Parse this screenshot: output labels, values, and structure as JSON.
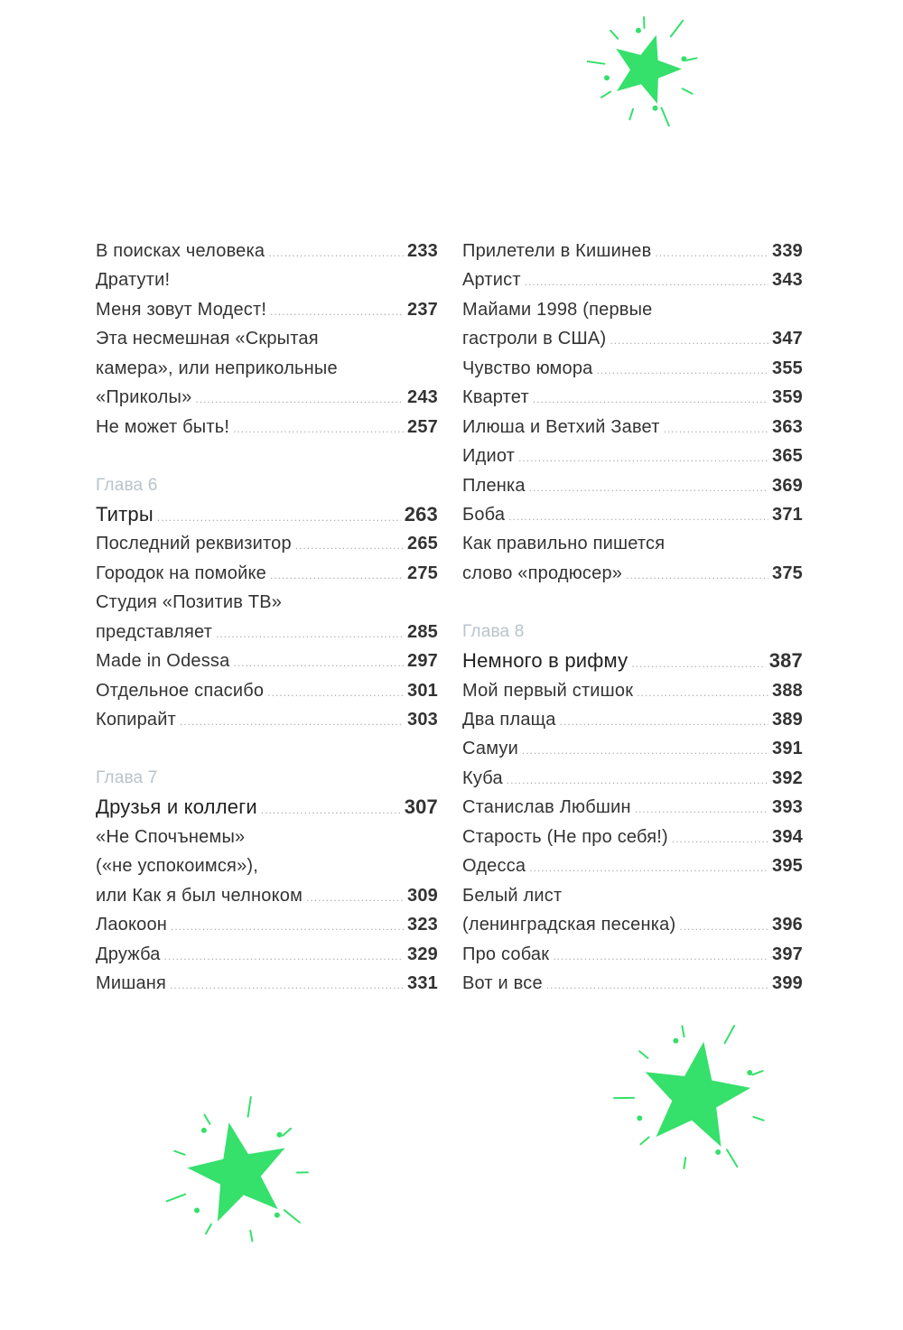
{
  "accent_color": "#35e06b",
  "decorations": [
    "star-burst-icon",
    "star-burst-icon",
    "star-burst-icon"
  ],
  "left_column": [
    {
      "type": "entry",
      "lines": [
        "В поисках человека"
      ],
      "page": "233"
    },
    {
      "type": "entry",
      "lines": [
        "Дратути!"
      ],
      "page": null
    },
    {
      "type": "entry",
      "lines": [
        "Меня зовут Модест!"
      ],
      "page": "237"
    },
    {
      "type": "entry",
      "lines": [
        "Эта несмешная «Скрытая",
        "камера», или неприкольные",
        "«Приколы»"
      ],
      "page": "243"
    },
    {
      "type": "entry",
      "lines": [
        "Не может быть!"
      ],
      "page": "257"
    },
    {
      "type": "gap"
    },
    {
      "type": "chapter",
      "label": "Глава 6"
    },
    {
      "type": "major",
      "lines": [
        "Титры"
      ],
      "page": "263"
    },
    {
      "type": "entry",
      "lines": [
        "Последний реквизитор"
      ],
      "page": "265"
    },
    {
      "type": "entry",
      "lines": [
        "Городок на помойке"
      ],
      "page": "275"
    },
    {
      "type": "entry",
      "lines": [
        "Студия «Позитив ТВ»",
        "представляет"
      ],
      "page": "285"
    },
    {
      "type": "entry",
      "lines": [
        "Made in Odessa"
      ],
      "page": "297"
    },
    {
      "type": "entry",
      "lines": [
        "Отдельное спасибо"
      ],
      "page": "301"
    },
    {
      "type": "entry",
      "lines": [
        "Копирайт"
      ],
      "page": "303"
    },
    {
      "type": "gap"
    },
    {
      "type": "chapter",
      "label": "Глава 7"
    },
    {
      "type": "major",
      "lines": [
        "Друзья и коллеги"
      ],
      "page": "307"
    },
    {
      "type": "entry",
      "lines": [
        "«Не Спочънемы»",
        "(«не успокоимся»),",
        "или Как я был челноком"
      ],
      "page": "309"
    },
    {
      "type": "entry",
      "lines": [
        "Лаокоон"
      ],
      "page": "323"
    },
    {
      "type": "entry",
      "lines": [
        "Дружба"
      ],
      "page": "329"
    },
    {
      "type": "entry",
      "lines": [
        "Мишаня"
      ],
      "page": "331"
    }
  ],
  "right_column": [
    {
      "type": "entry",
      "lines": [
        "Прилетели в Кишинев"
      ],
      "page": "339"
    },
    {
      "type": "entry",
      "lines": [
        "Артист"
      ],
      "page": "343"
    },
    {
      "type": "entry",
      "lines": [
        "Майами 1998 (первые",
        "гастроли в США)"
      ],
      "page": "347"
    },
    {
      "type": "entry",
      "lines": [
        "Чувство юмора"
      ],
      "page": "355"
    },
    {
      "type": "entry",
      "lines": [
        "Квартет"
      ],
      "page": "359"
    },
    {
      "type": "entry",
      "lines": [
        "Илюша и Ветхий Завет"
      ],
      "page": "363"
    },
    {
      "type": "entry",
      "lines": [
        "Идиот"
      ],
      "page": "365"
    },
    {
      "type": "entry",
      "lines": [
        "Пленка"
      ],
      "page": "369"
    },
    {
      "type": "entry",
      "lines": [
        "Боба"
      ],
      "page": "371"
    },
    {
      "type": "entry",
      "lines": [
        "Как правильно пишется",
        "слово «продюсер»"
      ],
      "page": "375"
    },
    {
      "type": "gap"
    },
    {
      "type": "chapter",
      "label": "Глава 8"
    },
    {
      "type": "major",
      "lines": [
        "Немного в рифму"
      ],
      "page": "387"
    },
    {
      "type": "entry",
      "lines": [
        "Мой первый стишок"
      ],
      "page": "388"
    },
    {
      "type": "entry",
      "lines": [
        "Два плаща"
      ],
      "page": "389"
    },
    {
      "type": "entry",
      "lines": [
        "Самуи"
      ],
      "page": "391"
    },
    {
      "type": "entry",
      "lines": [
        "Куба"
      ],
      "page": "392"
    },
    {
      "type": "entry",
      "lines": [
        "Станислав Любшин"
      ],
      "page": "393"
    },
    {
      "type": "entry",
      "lines": [
        "Старость (Не про себя!)"
      ],
      "page": "394"
    },
    {
      "type": "entry",
      "lines": [
        "Одесса"
      ],
      "page": "395"
    },
    {
      "type": "entry",
      "lines": [
        "Белый лист",
        "(ленинградская песенка)"
      ],
      "page": "396"
    },
    {
      "type": "entry",
      "lines": [
        "Про собак"
      ],
      "page": "397"
    },
    {
      "type": "entry",
      "lines": [
        "Вот и все"
      ],
      "page": "399"
    }
  ]
}
